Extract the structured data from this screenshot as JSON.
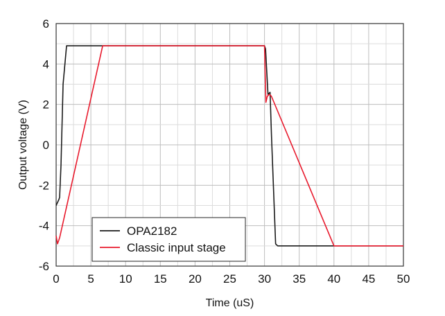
{
  "chart_data": {
    "type": "line",
    "title": "",
    "xlabel": "Time (uS)",
    "ylabel": "Output voltage (V)",
    "xlim": [
      0,
      50
    ],
    "ylim": [
      -6,
      6
    ],
    "xticks": [
      0,
      5,
      10,
      15,
      20,
      25,
      30,
      35,
      40,
      45,
      50
    ],
    "yticks": [
      -6,
      -4,
      -2,
      0,
      2,
      4,
      6
    ],
    "minor_grid_step_x": 2.5,
    "minor_grid_step_y": 1,
    "grid": true,
    "legend_position": "bottom-left",
    "series": [
      {
        "name": "OPA2182",
        "color": "#1a1a1a",
        "x": [
          0,
          0.4,
          0.5,
          0.7,
          1.0,
          1.5,
          30.0,
          30.15,
          30.5,
          30.8,
          31.0,
          31.6,
          31.9,
          50
        ],
        "y": [
          -3.0,
          -2.7,
          -2.6,
          -1.0,
          3.0,
          4.9,
          4.9,
          4.75,
          2.5,
          2.6,
          0.5,
          -4.9,
          -5.0,
          -5.0
        ]
      },
      {
        "name": "Classic input stage",
        "color": "#e8192c",
        "x": [
          0,
          0.2,
          0.5,
          6.7,
          30.0,
          30.2,
          30.4,
          30.7,
          31.0,
          40.0,
          50
        ],
        "y": [
          -4.5,
          -4.9,
          -4.6,
          4.9,
          4.9,
          2.1,
          2.4,
          2.5,
          2.4,
          -5.0,
          -5.0
        ]
      }
    ]
  }
}
